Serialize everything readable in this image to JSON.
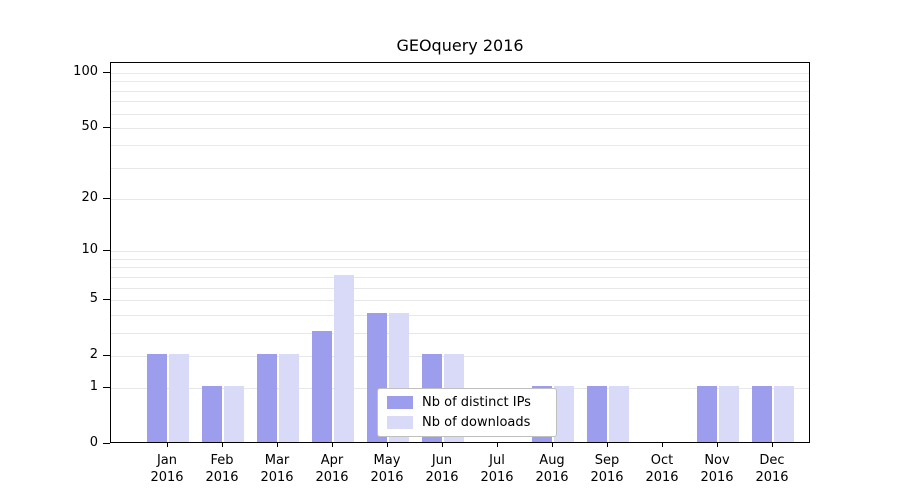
{
  "colors": {
    "distinct_ips": "#9d9dee",
    "downloads": "#d9d9f8",
    "gridline": "#e7e7e7",
    "axis": "#000000",
    "legend_border": "#bfbfbf"
  },
  "y_axis": {
    "ticks": [
      0,
      1,
      2,
      5,
      10,
      20,
      50,
      100
    ],
    "gridlines": [
      1,
      2,
      3,
      4,
      5,
      6,
      7,
      8,
      9,
      10,
      20,
      30,
      40,
      50,
      60,
      70,
      80,
      90,
      100
    ]
  },
  "chart_data": {
    "type": "bar",
    "title": "GEOquery 2016",
    "categories": [
      "Jan 2016",
      "Feb 2016",
      "Mar 2016",
      "Apr 2016",
      "May 2016",
      "Jun 2016",
      "Jul 2016",
      "Aug 2016",
      "Sep 2016",
      "Oct 2016",
      "Nov 2016",
      "Dec 2016"
    ],
    "series": [
      {
        "name": "Nb of distinct IPs",
        "color_key": "distinct_ips",
        "values": [
          2,
          1,
          2,
          3,
          4,
          2,
          0,
          1,
          1,
          0,
          1,
          1
        ]
      },
      {
        "name": "Nb of downloads",
        "color_key": "downloads",
        "values": [
          2,
          1,
          2,
          7,
          4,
          2,
          0,
          1,
          1,
          0,
          1,
          1
        ]
      }
    ],
    "scale": "log1p",
    "ylim": [
      0,
      100
    ],
    "legend_position": "lower center",
    "grid": "horizontal"
  }
}
